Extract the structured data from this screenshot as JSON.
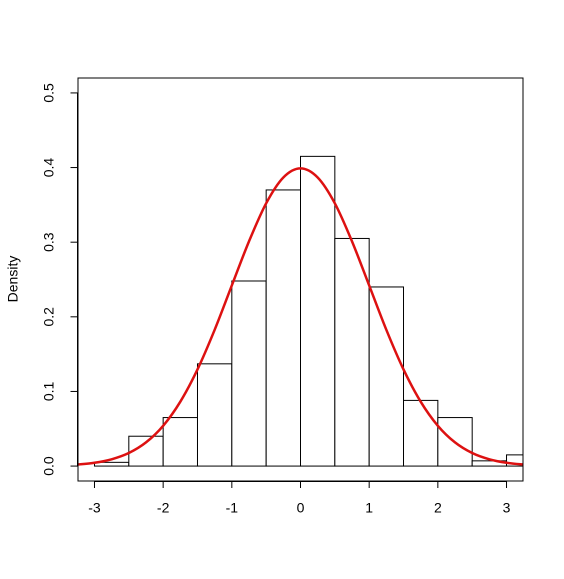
{
  "chart_data": {
    "type": "histogram",
    "ylabel": "Density",
    "bins": [
      -3,
      -2.5,
      -2,
      -1.5,
      -1,
      -0.5,
      0,
      0.5,
      1,
      1.5,
      2,
      2.5,
      3,
      3.5
    ],
    "values": [
      0.005,
      0.04,
      0.065,
      0.137,
      0.248,
      0.37,
      0.415,
      0.305,
      0.24,
      0.088,
      0.065,
      0.007,
      0.015
    ],
    "bar_color": "#ffffff",
    "edge_color": "#000000",
    "curve": {
      "type": "line",
      "color": "#dd1111",
      "x": [
        -3.25,
        -3,
        -2.75,
        -2.5,
        -2.25,
        -2,
        -1.75,
        -1.5,
        -1.25,
        -1,
        -0.75,
        -0.5,
        -0.25,
        0,
        0.25,
        0.5,
        0.75,
        1,
        1.25,
        1.5,
        1.75,
        2,
        2.25,
        2.5,
        2.75,
        3,
        3.25
      ],
      "values": [
        0.002,
        0.0044,
        0.0091,
        0.0175,
        0.0317,
        0.054,
        0.0863,
        0.1295,
        0.1826,
        0.242,
        0.3011,
        0.3521,
        0.3867,
        0.3989,
        0.3867,
        0.3521,
        0.3011,
        0.242,
        0.1826,
        0.1295,
        0.0863,
        0.054,
        0.0317,
        0.0175,
        0.0091,
        0.0044,
        0.002
      ]
    },
    "xlim": [
      -3.24,
      3.24
    ],
    "ylim": [
      -0.02,
      0.52
    ],
    "xticks": [
      -3,
      -2,
      -1,
      0,
      1,
      2,
      3
    ],
    "yticks": [
      {
        "value": 0,
        "label": "0.0"
      },
      0.1,
      0.2,
      0.3,
      0.4,
      0.5
    ]
  }
}
